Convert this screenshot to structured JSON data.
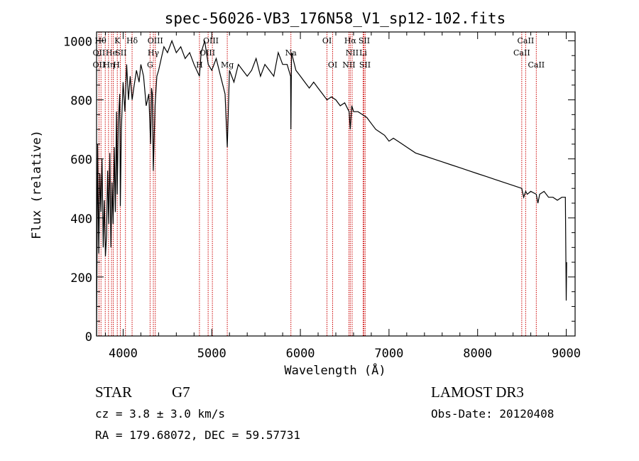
{
  "chart_data": {
    "type": "line",
    "title": "spec-56026-VB3_176N58_V1_sp12-102.fits",
    "xlabel": "Wavelength (Å)",
    "ylabel": "Flux (relative)",
    "xlim": [
      3700,
      9100
    ],
    "ylim": [
      0,
      1030
    ],
    "xticks": [
      4000,
      5000,
      6000,
      7000,
      8000,
      9000
    ],
    "yticks": [
      0,
      200,
      400,
      600,
      800,
      1000
    ],
    "xtick_labels": [
      "4000",
      "5000",
      "6000",
      "7000",
      "8000",
      "9000"
    ],
    "ytick_labels": [
      "0",
      "200",
      "400",
      "600",
      "800",
      "1000"
    ],
    "series": [
      {
        "name": "flux",
        "x": [
          3700,
          3712,
          3725,
          3737,
          3750,
          3762,
          3775,
          3787,
          3800,
          3812,
          3825,
          3837,
          3850,
          3862,
          3875,
          3887,
          3900,
          3912,
          3925,
          3933,
          3945,
          3962,
          3968,
          3980,
          4000,
          4020,
          4040,
          4060,
          4080,
          4101,
          4120,
          4150,
          4180,
          4200,
          4230,
          4260,
          4290,
          4310,
          4320,
          4330,
          4340,
          4360,
          4380,
          4400,
          4430,
          4460,
          4500,
          4550,
          4600,
          4650,
          4700,
          4750,
          4800,
          4861,
          4880,
          4920,
          4960,
          5000,
          5050,
          5100,
          5150,
          5175,
          5200,
          5250,
          5300,
          5350,
          5400,
          5450,
          5500,
          5550,
          5600,
          5650,
          5700,
          5750,
          5800,
          5850,
          5890,
          5893,
          5900,
          5950,
          6000,
          6050,
          6100,
          6150,
          6200,
          6250,
          6300,
          6350,
          6400,
          6450,
          6500,
          6550,
          6563,
          6580,
          6600,
          6650,
          6700,
          6750,
          6800,
          6850,
          6900,
          6950,
          7000,
          7050,
          7100,
          7150,
          7200,
          7300,
          7400,
          7500,
          7600,
          7700,
          7800,
          7900,
          8000,
          8100,
          8200,
          8300,
          8400,
          8498,
          8520,
          8542,
          8560,
          8600,
          8662,
          8680,
          8700,
          8750,
          8800,
          8850,
          8900,
          8950,
          8990,
          9000,
          9005
        ],
        "y": [
          0,
          650,
          280,
          550,
          420,
          600,
          300,
          460,
          270,
          340,
          560,
          380,
          620,
          300,
          520,
          380,
          640,
          420,
          760,
          480,
          720,
          820,
          440,
          700,
          860,
          760,
          920,
          800,
          880,
          800,
          840,
          900,
          860,
          920,
          880,
          780,
          820,
          650,
          840,
          820,
          560,
          780,
          880,
          900,
          940,
          980,
          960,
          1000,
          960,
          980,
          940,
          960,
          920,
          880,
          960,
          1000,
          920,
          900,
          940,
          880,
          820,
          640,
          900,
          860,
          920,
          900,
          880,
          900,
          940,
          880,
          920,
          900,
          880,
          960,
          920,
          920,
          880,
          700,
          960,
          900,
          880,
          860,
          840,
          860,
          840,
          820,
          800,
          810,
          800,
          780,
          790,
          760,
          700,
          780,
          760,
          760,
          750,
          740,
          720,
          700,
          690,
          680,
          660,
          670,
          660,
          650,
          640,
          620,
          610,
          600,
          590,
          580,
          570,
          560,
          550,
          540,
          530,
          520,
          510,
          500,
          470,
          490,
          480,
          490,
          480,
          450,
          480,
          490,
          470,
          470,
          460,
          470,
          470,
          120,
          250
        ]
      }
    ],
    "lines": [
      {
        "w": 3727,
        "label": "OII"
      },
      {
        "w": 3750,
        "label": "Hθ"
      },
      {
        "w": 3798,
        "label": "Hθ"
      },
      {
        "w": 3835,
        "label": "Hη"
      },
      {
        "w": 3869,
        "label": "He"
      },
      {
        "w": 3889,
        "label": "H"
      },
      {
        "w": 3934,
        "label": "K"
      },
      {
        "w": 3968,
        "label": "SII"
      },
      {
        "w": 4026,
        "label": "He"
      },
      {
        "w": 4101,
        "label": "Hδ"
      },
      {
        "w": 4304,
        "label": "G"
      },
      {
        "w": 4341,
        "label": "Hγ"
      },
      {
        "w": 4363,
        "label": "OIII"
      },
      {
        "w": 4861,
        "label": "Hβ"
      },
      {
        "w": 4959,
        "label": "OIII"
      },
      {
        "w": 5007,
        "label": "OIII"
      },
      {
        "w": 5175,
        "label": "Mg"
      },
      {
        "w": 5893,
        "label": "Na"
      },
      {
        "w": 6300,
        "label": "OI"
      },
      {
        "w": 6364,
        "label": "OI"
      },
      {
        "w": 6548,
        "label": "NII"
      },
      {
        "w": 6563,
        "label": "Hα"
      },
      {
        "w": 6584,
        "label": "NII"
      },
      {
        "w": 6708,
        "label": "Li"
      },
      {
        "w": 6717,
        "label": "SII"
      },
      {
        "w": 6731,
        "label": "SII"
      },
      {
        "w": 8498,
        "label": "CaII"
      },
      {
        "w": 8542,
        "label": "CaII"
      },
      {
        "w": 8662,
        "label": "CaII"
      }
    ],
    "line_labels": [
      {
        "text": "Hθ",
        "w": 3745,
        "row": 1
      },
      {
        "text": "OII",
        "w": 3727,
        "row": 2
      },
      {
        "text": "OII",
        "w": 3727,
        "row": 3
      },
      {
        "text": "He",
        "w": 3868,
        "row": 2
      },
      {
        "text": "Hη",
        "w": 3840,
        "row": 3
      },
      {
        "text": "H",
        "w": 3925,
        "row": 3
      },
      {
        "text": "K",
        "w": 3934,
        "row": 1
      },
      {
        "text": "SII",
        "w": 3975,
        "row": 2
      },
      {
        "text": "Hδ",
        "w": 4101,
        "row": 1
      },
      {
        "text": "OIII",
        "w": 4363,
        "row": 1
      },
      {
        "text": "Hγ",
        "w": 4341,
        "row": 2
      },
      {
        "text": "G",
        "w": 4304,
        "row": 3
      },
      {
        "text": "OIII",
        "w": 4990,
        "row": 1
      },
      {
        "text": "OIII",
        "w": 4950,
        "row": 2
      },
      {
        "text": "H",
        "w": 4861,
        "row": 3
      },
      {
        "text": "Mg",
        "w": 5175,
        "row": 3
      },
      {
        "text": "Na",
        "w": 5893,
        "row": 2
      },
      {
        "text": "OI",
        "w": 6300,
        "row": 1
      },
      {
        "text": "OI",
        "w": 6364,
        "row": 3
      },
      {
        "text": "Hα",
        "w": 6563,
        "row": 1
      },
      {
        "text": "SII",
        "w": 6720,
        "row": 1
      },
      {
        "text": "NII",
        "w": 6584,
        "row": 2
      },
      {
        "text": "Li",
        "w": 6708,
        "row": 2
      },
      {
        "text": "NII",
        "w": 6548,
        "row": 3
      },
      {
        "text": "SII",
        "w": 6728,
        "row": 3
      },
      {
        "text": "CaII",
        "w": 8542,
        "row": 1
      },
      {
        "text": "CaII",
        "w": 8498,
        "row": 2
      },
      {
        "text": "CaII",
        "w": 8662,
        "row": 3
      }
    ],
    "line_color": "#cc0000"
  },
  "info": {
    "object_class": "STAR",
    "subclass": "G7",
    "survey": "LAMOST DR3",
    "cz": "cz = 3.8 ± 3.0 km/s",
    "obs_date": "Obs-Date: 20120408",
    "coords": "RA = 179.68072, DEC =  59.57731"
  }
}
